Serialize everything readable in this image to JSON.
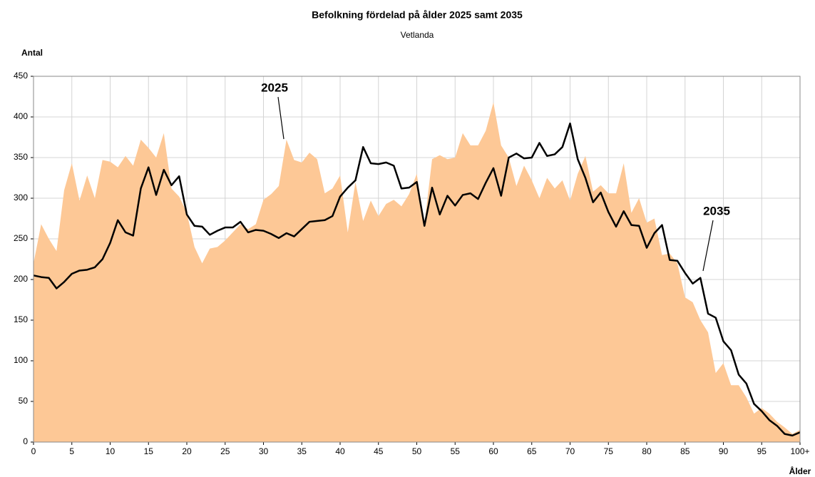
{
  "chart_data": {
    "type": "line",
    "title": "Befolkning fördelad på ålder 2025 samt 2035",
    "subtitle": "Vetlanda",
    "y_label": "Antal",
    "x_label": "Ålder",
    "x": [
      0,
      1,
      2,
      3,
      4,
      5,
      6,
      7,
      8,
      9,
      10,
      11,
      12,
      13,
      14,
      15,
      16,
      17,
      18,
      19,
      20,
      21,
      22,
      23,
      24,
      25,
      26,
      27,
      28,
      29,
      30,
      31,
      32,
      33,
      34,
      35,
      36,
      37,
      38,
      39,
      40,
      41,
      42,
      43,
      44,
      45,
      46,
      47,
      48,
      49,
      50,
      51,
      52,
      53,
      54,
      55,
      56,
      57,
      58,
      59,
      60,
      61,
      62,
      63,
      64,
      65,
      66,
      67,
      68,
      69,
      70,
      71,
      72,
      73,
      74,
      75,
      76,
      77,
      78,
      79,
      80,
      81,
      82,
      83,
      84,
      85,
      86,
      87,
      88,
      89,
      90,
      91,
      92,
      93,
      94,
      95,
      96,
      97,
      98,
      99,
      100
    ],
    "series": [
      {
        "name": "2025",
        "type": "area",
        "color": "#fdc896",
        "values": [
          220,
          268,
          250,
          235,
          310,
          343,
          297,
          328,
          300,
          347,
          345,
          338,
          352,
          340,
          372,
          362,
          350,
          380,
          312,
          302,
          282,
          240,
          220,
          238,
          240,
          248,
          258,
          268,
          262,
          268,
          298,
          305,
          315,
          372,
          347,
          344,
          356,
          348,
          306,
          312,
          328,
          258,
          320,
          272,
          297,
          278,
          293,
          298,
          290,
          305,
          330,
          268,
          348,
          353,
          348,
          350,
          380,
          365,
          365,
          383,
          418,
          365,
          350,
          315,
          340,
          322,
          300,
          325,
          312,
          322,
          297,
          330,
          352,
          308,
          316,
          306,
          306,
          343,
          282,
          300,
          270,
          275,
          230,
          232,
          220,
          178,
          172,
          150,
          135,
          85,
          97,
          70,
          70,
          55,
          35,
          42,
          35,
          25,
          18,
          10,
          15
        ]
      },
      {
        "name": "2035",
        "type": "line",
        "color": "#000000",
        "values": [
          205,
          203,
          202,
          189,
          197,
          207,
          211,
          212,
          215,
          225,
          245,
          273,
          258,
          254,
          312,
          338,
          304,
          335,
          316,
          327,
          280,
          266,
          265,
          255,
          260,
          264,
          264,
          271,
          258,
          261,
          260,
          256,
          251,
          257,
          253,
          262,
          271,
          272,
          273,
          278,
          302,
          313,
          322,
          363,
          343,
          342,
          344,
          340,
          312,
          313,
          320,
          266,
          313,
          280,
          303,
          291,
          304,
          306,
          299,
          319,
          337,
          303,
          350,
          355,
          349,
          350,
          368,
          352,
          354,
          363,
          392,
          348,
          325,
          295,
          307,
          283,
          265,
          284,
          267,
          266,
          239,
          257,
          267,
          224,
          223,
          208,
          195,
          202,
          158,
          153,
          124,
          113,
          83,
          72,
          47,
          38,
          27,
          20,
          10,
          8,
          12
        ]
      }
    ],
    "xlim": [
      0,
      100
    ],
    "ylim": [
      0,
      450
    ],
    "xticks": [
      0,
      5,
      10,
      15,
      20,
      25,
      30,
      35,
      40,
      45,
      50,
      55,
      60,
      65,
      70,
      75,
      80,
      85,
      90,
      95,
      {
        "value": 100,
        "label": "100+"
      }
    ],
    "yticks": [
      0,
      50,
      100,
      150,
      200,
      250,
      300,
      350,
      400,
      450
    ],
    "grid": true
  }
}
